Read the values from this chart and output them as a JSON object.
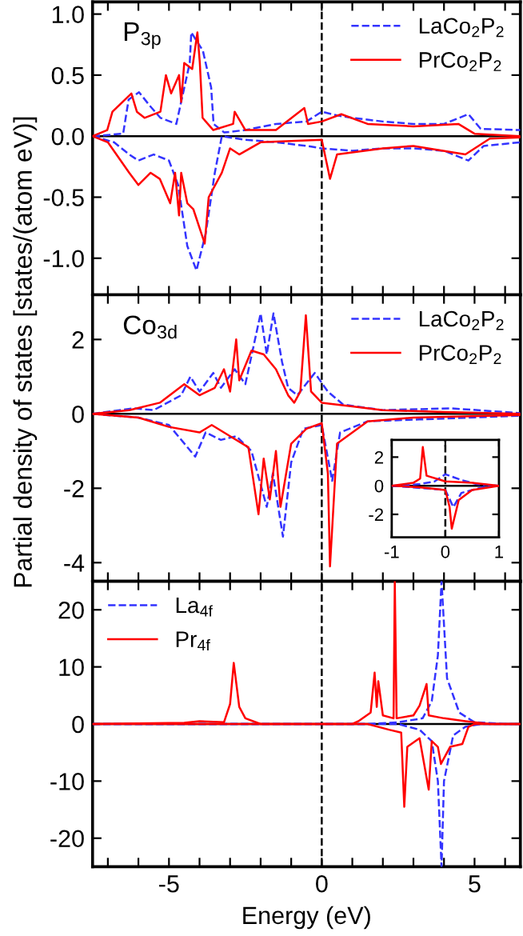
{
  "chart_data": [
    {
      "type": "line",
      "annotations": [
        "P$_{3p}$"
      ],
      "xlim": [
        -7.5,
        6.5
      ],
      "ylim": [
        -1.3,
        1.1
      ],
      "tick_labels": "y",
      "legend": "top right",
      "xticks": [
        {
          "value": -7,
          "label": null
        },
        {
          "value": -6,
          "label": null
        },
        {
          "value": -5,
          "label": null
        },
        {
          "value": -4,
          "label": null
        },
        {
          "value": -3,
          "label": null
        },
        {
          "value": -2,
          "label": null
        },
        {
          "value": -1,
          "label": null
        },
        {
          "value": 0,
          "label": null
        },
        {
          "value": 1,
          "label": null
        },
        {
          "value": 2,
          "label": null
        },
        {
          "value": 3,
          "label": null
        },
        {
          "value": 4,
          "label": null
        },
        {
          "value": 5,
          "label": null
        },
        {
          "value": 6,
          "label": null
        }
      ],
      "yticks": [
        {
          "value": -1,
          "label": "-1.0"
        },
        {
          "value": -0.5,
          "label": "-0.5"
        },
        {
          "value": 0,
          "label": "0.0"
        },
        {
          "value": 0.5,
          "label": "0.5"
        },
        {
          "value": 1,
          "label": "1.0"
        }
      ],
      "ref_lines": [
        {
          "axis": "x",
          "value": 0,
          "color": "#000000",
          "line_style": "dashed"
        },
        {
          "axis": "y",
          "value": 0,
          "color": "#000000",
          "line_style": "solid"
        }
      ],
      "series": [
        {
          "name": "LaCo$_{2}$P$_{2}$",
          "color": "#3333ff",
          "line_style": "dashed",
          "x": [
            -7.5,
            -6.5,
            -6.32,
            -5.98,
            -5.63,
            -5.28,
            -4.76,
            -4.32,
            -4.27,
            -3.89,
            -3.62,
            -3.54,
            -3.19,
            -2.5,
            -1.5,
            -0.5,
            0,
            0.5,
            1,
            2,
            3,
            4,
            4.8,
            5.2,
            6.5
          ],
          "values": [
            0,
            0.02,
            0.3,
            0.36,
            0.25,
            0.15,
            0.1,
            0.6,
            0.85,
            0.7,
            0.4,
            0.1,
            0.03,
            0.05,
            0.1,
            0.12,
            0.2,
            0.17,
            0.15,
            0.12,
            0.1,
            0.1,
            0.18,
            0.06,
            0.05
          ]
        },
        {
          "color": "#3333ff",
          "line_style": "dashed",
          "x": [
            -7.5,
            -6.8,
            -6.3,
            -6.0,
            -5.5,
            -5.0,
            -4.7,
            -4.4,
            -4.1,
            -3.8,
            -3.5,
            -3.27,
            -2.5,
            -1.5,
            -0.5,
            0,
            1,
            2,
            3,
            4,
            4.8,
            5.3,
            6.5
          ],
          "values": [
            0,
            -0.05,
            -0.15,
            -0.2,
            -0.15,
            -0.2,
            -0.4,
            -0.9,
            -1.1,
            -0.8,
            -0.3,
            0,
            -0.03,
            -0.05,
            -0.08,
            -0.1,
            -0.12,
            -0.1,
            -0.1,
            -0.12,
            -0.2,
            -0.08,
            -0.05
          ]
        },
        {
          "name": "PrCo$_{2}$P$_{2}$",
          "color": "#ff0000",
          "line_style": "solid",
          "x": [
            -7.5,
            -7.02,
            -6.85,
            -6.23,
            -6.05,
            -5.8,
            -5.28,
            -5.1,
            -4.93,
            -4.67,
            -4.6,
            -4.5,
            -4.24,
            -4.07,
            -3.99,
            -3.9,
            -3.55,
            -2.9,
            -2.85,
            -2.5,
            -1.5,
            -0.57,
            -0.45,
            0,
            0.64,
            1.5,
            3,
            4.47,
            5.0,
            6.5
          ],
          "values": [
            0,
            0.05,
            0.2,
            0.35,
            0.2,
            0.15,
            0.2,
            0.5,
            0.35,
            0.5,
            0.28,
            0.6,
            0.55,
            0.85,
            0.6,
            0.15,
            0.05,
            0.1,
            0.2,
            0.05,
            0.05,
            0.23,
            0.1,
            0.12,
            0.18,
            0.1,
            0.08,
            0.1,
            0.02,
            0
          ]
        },
        {
          "color": "#ff0000",
          "line_style": "solid",
          "x": [
            -7.5,
            -7.0,
            -6.3,
            -6.0,
            -5.6,
            -5.3,
            -4.96,
            -4.8,
            -4.67,
            -4.6,
            -4.4,
            -4.2,
            -3.83,
            -3.7,
            -3.27,
            -3.0,
            -2.7,
            -2.0,
            0,
            0.27,
            0.5,
            2,
            3,
            4.7,
            5.5,
            6.5
          ],
          "values": [
            0,
            -0.05,
            -0.3,
            -0.4,
            -0.3,
            -0.35,
            -0.55,
            -0.3,
            -0.65,
            -0.3,
            -0.55,
            -0.6,
            -0.88,
            -0.5,
            -0.3,
            -0.1,
            -0.15,
            -0.05,
            -0.03,
            -0.35,
            -0.15,
            -0.1,
            -0.08,
            -0.15,
            -0.02,
            -0.01
          ]
        }
      ]
    },
    {
      "type": "line",
      "annotations": [
        "Co$_{3d}$"
      ],
      "ylabel": "Partial density of states [states/(atom eV)]",
      "xlim": [
        -7.5,
        6.5
      ],
      "ylim": [
        -4.5,
        3.2
      ],
      "tick_labels": "y",
      "legend": "top right",
      "xticks": [
        {
          "value": -7,
          "label": null
        },
        {
          "value": -6,
          "label": null
        },
        {
          "value": -5,
          "label": null
        },
        {
          "value": -4,
          "label": null
        },
        {
          "value": -3,
          "label": null
        },
        {
          "value": -2,
          "label": null
        },
        {
          "value": -1,
          "label": null
        },
        {
          "value": 0,
          "label": null
        },
        {
          "value": 1,
          "label": null
        },
        {
          "value": 2,
          "label": null
        },
        {
          "value": 3,
          "label": null
        },
        {
          "value": 4,
          "label": null
        },
        {
          "value": 5,
          "label": null
        },
        {
          "value": 6,
          "label": null
        }
      ],
      "yticks": [
        -4,
        -2,
        0,
        2
      ],
      "ref_lines": [
        {
          "axis": "x",
          "value": 0,
          "color": "#000000",
          "line_style": "dashed"
        },
        {
          "axis": "y",
          "value": 0,
          "color": "#000000",
          "line_style": "solid"
        }
      ],
      "series": [
        {
          "name": "LaCo$_{2}$P$_{2}$",
          "color": "#3333ff",
          "line_style": "dashed",
          "x": [
            -7.5,
            -6.15,
            -5.5,
            -4.6,
            -4.3,
            -4.0,
            -3.55,
            -3.3,
            -2.85,
            -2.5,
            -2.0,
            -1.8,
            -1.58,
            -1.3,
            -1.1,
            -0.8,
            -0.23,
            0.2,
            0.7,
            2,
            4.2,
            6.5
          ],
          "values": [
            0,
            0.15,
            0.1,
            0.5,
            1.0,
            0.6,
            1.1,
            0.7,
            1.2,
            0.8,
            2.7,
            1.6,
            2.7,
            1.4,
            0.7,
            0.5,
            1.1,
            0.6,
            0.25,
            0.1,
            0.15,
            0.02
          ]
        },
        {
          "color": "#3333ff",
          "line_style": "dashed",
          "x": [
            -7.5,
            -6,
            -5,
            -4.14,
            -3.8,
            -3.3,
            -2.8,
            -2.3,
            -1.8,
            -1.6,
            -1.27,
            -1.0,
            -0.6,
            0,
            0.34,
            0.6,
            1.5,
            3.2,
            6.5
          ],
          "values": [
            0,
            -0.1,
            -0.3,
            -1.15,
            -0.5,
            -0.7,
            -0.6,
            -1.0,
            -2.5,
            -1.6,
            -3.3,
            -1.3,
            -0.4,
            -0.3,
            -1.8,
            -0.5,
            -0.2,
            -0.15,
            -0.05
          ]
        },
        {
          "name": "PrCo$_{2}$P$_{2}$",
          "color": "#ff0000",
          "line_style": "solid",
          "x": [
            -7.5,
            -6.3,
            -5.3,
            -4.5,
            -4.0,
            -3.5,
            -3.2,
            -3.0,
            -2.8,
            -2.7,
            -2.3,
            -1.9,
            -1.5,
            -1.1,
            -0.9,
            -0.7,
            -0.52,
            -0.35,
            0,
            1,
            2,
            4,
            6.5
          ],
          "values": [
            0,
            0.1,
            0.3,
            0.8,
            0.5,
            0.7,
            1.2,
            0.6,
            2.0,
            0.9,
            1.7,
            1.6,
            1.2,
            0.5,
            0.3,
            0.6,
            2.65,
            0.6,
            0.3,
            0.2,
            0.1,
            0.05,
            0
          ]
        },
        {
          "color": "#ff0000",
          "line_style": "solid",
          "x": [
            -7.5,
            -6,
            -5,
            -4,
            -3.6,
            -3,
            -2.4,
            -2.07,
            -1.9,
            -1.7,
            -1.5,
            -1.35,
            -1.0,
            -0.5,
            0,
            0.2,
            0.27,
            0.5,
            1.5,
            3,
            6.5
          ],
          "values": [
            0,
            -0.1,
            -0.35,
            -0.5,
            -0.3,
            -0.6,
            -0.9,
            -2.7,
            -1.2,
            -2.3,
            -1.0,
            -2.5,
            -0.8,
            -0.4,
            -0.25,
            -1.6,
            -4.1,
            -0.8,
            -0.2,
            -0.1,
            -0.03
          ]
        }
      ]
    },
    {
      "type": "line",
      "xlabel": "Energy (eV)",
      "xlim": [
        -7.5,
        6.5
      ],
      "ylim": [
        -25,
        25
      ],
      "legend": "top left",
      "xticks": [
        {
          "value": -7,
          "label": null
        },
        {
          "value": -6,
          "label": null
        },
        -5,
        {
          "value": -4,
          "label": null
        },
        {
          "value": -3,
          "label": null
        },
        {
          "value": -2,
          "label": null
        },
        {
          "value": -1,
          "label": null
        },
        0,
        {
          "value": 1,
          "label": null
        },
        {
          "value": 2,
          "label": null
        },
        {
          "value": 3,
          "label": null
        },
        {
          "value": 4,
          "label": null
        },
        5,
        {
          "value": 6,
          "label": null
        }
      ],
      "yticks": [
        -20,
        -10,
        0,
        10,
        20
      ],
      "ref_lines": [
        {
          "axis": "x",
          "value": 0,
          "color": "#000000",
          "line_style": "dashed"
        },
        {
          "axis": "y",
          "value": 0,
          "color": "#000000",
          "line_style": "solid"
        }
      ],
      "series": [
        {
          "name": "La$_{4f}$",
          "color": "#3333ff",
          "line_style": "dashed",
          "x": [
            -7.5,
            1.5,
            2.5,
            3.3,
            3.6,
            3.8,
            3.92,
            4.1,
            4.5,
            5,
            6,
            6.5
          ],
          "values": [
            0,
            0,
            0.3,
            1.0,
            4,
            12,
            25,
            8,
            2,
            0.3,
            0,
            0
          ]
        },
        {
          "color": "#3333ff",
          "line_style": "dashed",
          "x": [
            -7.5,
            2.5,
            3.2,
            3.6,
            3.8,
            3.92,
            4.0,
            4.3,
            4.7,
            5.2,
            6.5
          ],
          "values": [
            0,
            0,
            -1,
            -3,
            -10,
            -25,
            -10,
            -2,
            -0.5,
            0,
            0
          ]
        },
        {
          "name": "Pr$_{4f}$",
          "color": "#ff0000",
          "line_style": "solid",
          "x": [
            -7.5,
            -4.5,
            -4,
            -3.2,
            -3.0,
            -2.88,
            -2.7,
            -2.5,
            -2,
            1,
            1.2,
            1.6,
            1.73,
            1.8,
            1.85,
            2.0,
            2.35,
            2.39,
            2.45,
            3.0,
            3.2,
            3.43,
            3.5,
            4,
            4.7,
            5.5,
            6.5
          ],
          "values": [
            0,
            0.2,
            0.5,
            0.3,
            3.5,
            10.7,
            3.0,
            1,
            0,
            0,
            0.5,
            2,
            9,
            3,
            7.5,
            1.5,
            1,
            25,
            1,
            1.5,
            3.2,
            7,
            1.5,
            1.0,
            0.5,
            0,
            0
          ]
        },
        {
          "color": "#ff0000",
          "line_style": "solid",
          "x": [
            -7.5,
            1.5,
            2.2,
            2.6,
            2.7,
            2.8,
            3.2,
            3.5,
            3.6,
            3.8,
            3.9,
            4.2,
            4.6,
            4.8,
            5,
            6.5
          ],
          "values": [
            0,
            0,
            -1,
            -1.5,
            -14.5,
            -4,
            -2.5,
            -11.5,
            -3,
            -4,
            -7,
            -4,
            -3.5,
            -0.5,
            0,
            0
          ]
        }
      ]
    },
    {
      "type": "line",
      "xlim": [
        -1,
        1
      ],
      "ylim": [
        -3.6,
        3.2
      ],
      "xticks": [
        -1,
        0,
        1
      ],
      "yticks": [
        -2,
        0,
        2
      ],
      "ref_lines": [
        {
          "axis": "x",
          "value": 0,
          "color": "#000000",
          "line_style": "dashed"
        },
        {
          "axis": "y",
          "value": 0,
          "color": "#000000",
          "line_style": "solid"
        }
      ],
      "series": [
        {
          "color": "#3333ff",
          "line_style": "dashed",
          "x": [
            -1,
            -0.5,
            -0.2,
            0,
            0.3,
            0.6,
            1
          ],
          "values": [
            0,
            0.1,
            0.3,
            0.8,
            0.4,
            0.1,
            0
          ]
        },
        {
          "color": "#3333ff",
          "line_style": "dashed",
          "x": [
            -1,
            -0.3,
            0,
            0.15,
            0.3,
            0.7,
            1
          ],
          "values": [
            0,
            -0.2,
            -0.3,
            -1.5,
            -0.5,
            -0.1,
            0
          ]
        },
        {
          "color": "#ff0000",
          "line_style": "solid",
          "x": [
            -1,
            -0.6,
            -0.47,
            -0.42,
            -0.35,
            0,
            0.5,
            1
          ],
          "values": [
            0,
            0.2,
            0.5,
            2.7,
            0.7,
            0.3,
            0.2,
            0
          ]
        },
        {
          "color": "#ff0000",
          "line_style": "solid",
          "x": [
            -1,
            -0.5,
            0,
            0.08,
            0.12,
            0.25,
            0.5,
            1
          ],
          "values": [
            0,
            -0.1,
            -0.3,
            -1.5,
            -3.0,
            -1,
            -0.3,
            0
          ]
        }
      ]
    }
  ]
}
